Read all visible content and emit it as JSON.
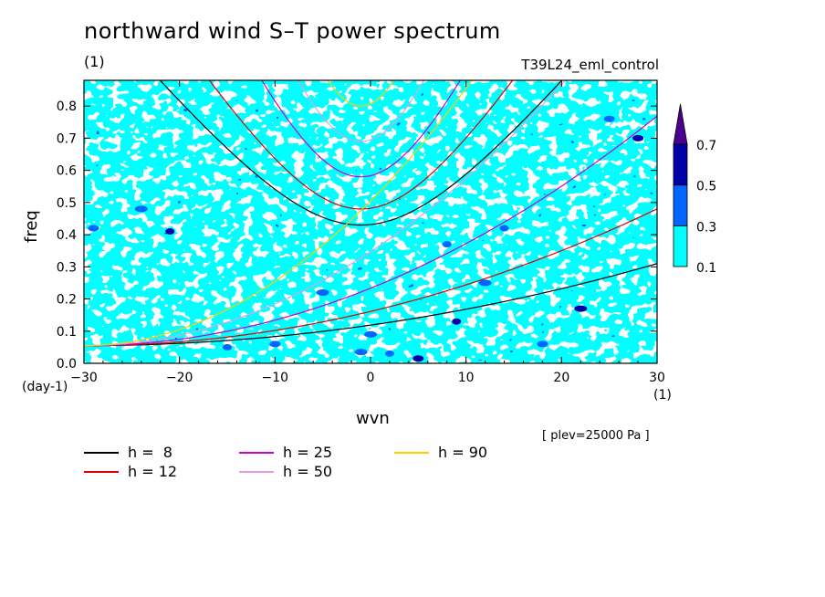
{
  "title": "northward wind S–T power spectrum",
  "subtitle": "(1)",
  "run_name": "T39L24_eml_control",
  "plev_note": "[ plev=25000 Pa ]",
  "chart_data": {
    "type": "heatmap",
    "title": "northward wind S–T power spectrum",
    "xlabel": "wvn",
    "x_unit": "(1)",
    "ylabel": "freq",
    "y_unit": "(day-1)",
    "xlim": [
      -30,
      30
    ],
    "ylim": [
      0.0,
      0.88
    ],
    "x_ticks": [
      "−30",
      "−20",
      "−10",
      "0",
      "10",
      "20",
      "30"
    ],
    "x_tick_values": [
      -30,
      -20,
      -10,
      0,
      10,
      20,
      30
    ],
    "y_ticks": [
      "0.0",
      "0.1",
      "0.2",
      "0.3",
      "0.4",
      "0.5",
      "0.6",
      "0.7",
      "0.8"
    ],
    "y_tick_values": [
      0.0,
      0.1,
      0.2,
      0.3,
      0.4,
      0.5,
      0.6,
      0.7,
      0.8
    ],
    "colorbar": {
      "levels": [
        "0.1",
        "0.3",
        "0.5",
        "0.7"
      ],
      "level_values": [
        0.1,
        0.3,
        0.5,
        0.7
      ],
      "colors": [
        "#00ffff",
        "#0066ff",
        "#0000aa",
        "#4b0090"
      ]
    },
    "field_description": "noisy spectral power field, mostly 0.1–0.3 with scattered patches above 0.3",
    "series": [
      {
        "name": "h =  8",
        "h": 8,
        "color": "#000000"
      },
      {
        "name": "h = 12",
        "h": 12,
        "color": "#e00000"
      },
      {
        "name": "h = 25",
        "h": 25,
        "color": "#cc00cc"
      },
      {
        "name": "h = 50",
        "h": 50,
        "color": "#e0a0e0"
      },
      {
        "name": "h = 90",
        "h": 90,
        "color": "#ffcc00"
      }
    ]
  }
}
